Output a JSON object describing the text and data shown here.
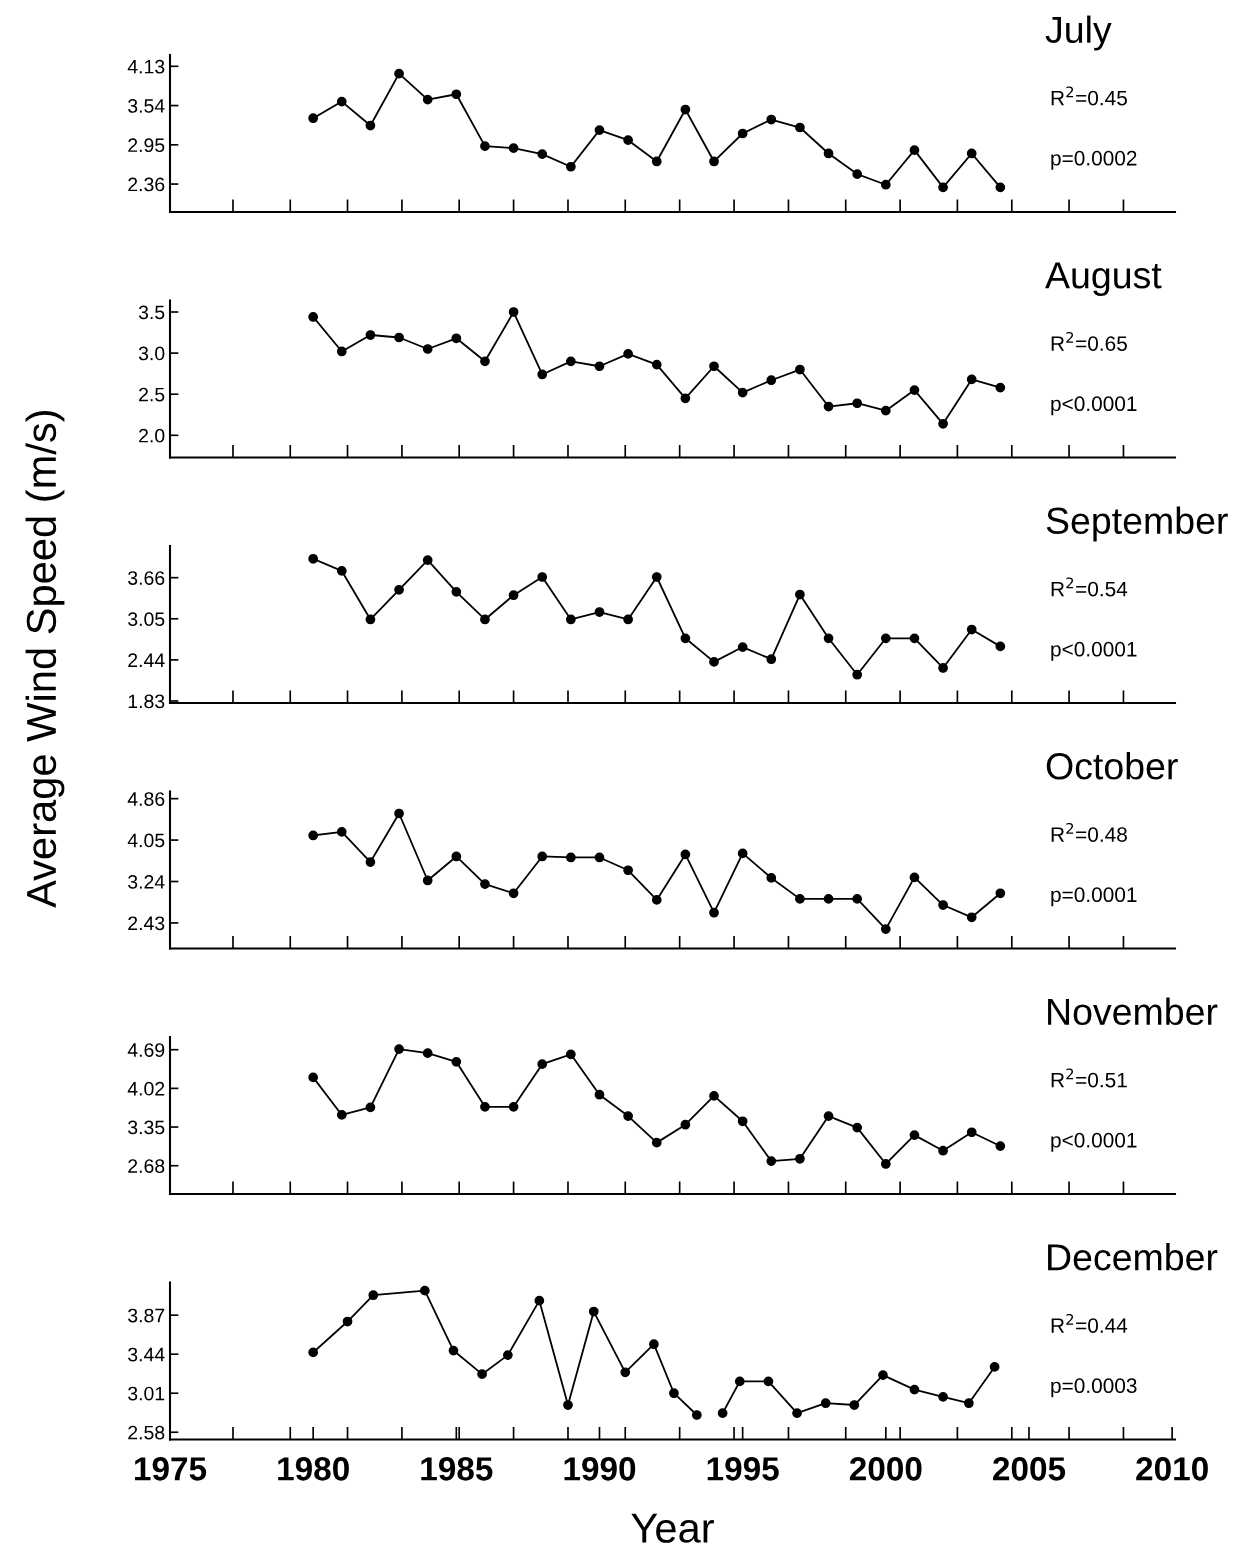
{
  "chart_data": [
    {
      "type": "line",
      "title": "July",
      "ylabel": "Average Wind Speed (m/s)",
      "annotations": [
        "R$^{2}$=0.45",
        "p=0.0002"
      ],
      "x": [
        1980,
        1981,
        1982,
        1983,
        1984,
        1985,
        1986,
        1987,
        1988,
        1989,
        1990,
        1991,
        1992,
        1993,
        1994,
        1995,
        1996,
        1997,
        1998,
        1999,
        2000,
        2001,
        2002,
        2003,
        2004
      ],
      "series": [
        {
          "color": "#000000",
          "values": [
            3.35,
            3.6,
            3.24,
            4.02,
            3.63,
            3.71,
            2.93,
            2.9,
            2.81,
            2.62,
            3.17,
            3.02,
            2.7,
            3.48,
            2.7,
            3.12,
            3.33,
            3.21,
            2.82,
            2.51,
            2.35,
            2.87,
            2.31,
            2.82,
            2.31
          ]
        }
      ],
      "xlim": [
        1975,
        2010.1
      ],
      "xticks": [
        {
          "value": 1977.2,
          "label": null
        },
        {
          "value": 1979.2,
          "label": null
        },
        {
          "value": 1981.2,
          "label": null
        },
        {
          "value": 1983.1,
          "label": null
        },
        {
          "value": 1985.1,
          "label": null
        },
        {
          "value": 1987.0,
          "label": null
        },
        {
          "value": 1988.9,
          "label": null
        },
        {
          "value": 1990.9,
          "label": null
        },
        {
          "value": 1992.8,
          "label": null
        },
        {
          "value": 1994.7,
          "label": null
        },
        {
          "value": 1996.6,
          "label": null
        },
        {
          "value": 1998.6,
          "label": null
        },
        {
          "value": 2000.5,
          "label": null
        },
        {
          "value": 2002.5,
          "label": null
        },
        {
          "value": 2004.4,
          "label": null
        },
        {
          "value": 2006.4,
          "label": null
        },
        {
          "value": 2008.3,
          "label": null
        }
      ],
      "ylim": [
        1.94,
        4.3
      ],
      "yticks": [
        2.36,
        2.95,
        3.54,
        4.13
      ],
      "tick_labels": "y",
      "marker": "circle",
      "line_style": "solid",
      "grid": false,
      "legend": false
    },
    {
      "type": "line",
      "title": "August",
      "annotations": [
        "R$^{2}$=0.65",
        "p<0.0001"
      ],
      "x": [
        1980,
        1981,
        1982,
        1983,
        1984,
        1985,
        1986,
        1987,
        1988,
        1989,
        1990,
        1991,
        1992,
        1993,
        1994,
        1995,
        1996,
        1997,
        1998,
        1999,
        2000,
        2001,
        2002,
        2003,
        2004
      ],
      "series": [
        {
          "color": "#000000",
          "values": [
            3.44,
            3.02,
            3.22,
            3.19,
            3.05,
            3.18,
            2.9,
            3.5,
            2.74,
            2.9,
            2.84,
            2.99,
            2.86,
            2.45,
            2.84,
            2.52,
            2.67,
            2.8,
            2.35,
            2.39,
            2.3,
            2.55,
            2.14,
            2.68,
            2.58
          ]
        }
      ],
      "xlim": [
        1975,
        2010.1
      ],
      "xticks": [
        {
          "value": 1977.2,
          "label": null
        },
        {
          "value": 1979.2,
          "label": null
        },
        {
          "value": 1981.2,
          "label": null
        },
        {
          "value": 1983.1,
          "label": null
        },
        {
          "value": 1985.1,
          "label": null
        },
        {
          "value": 1987.0,
          "label": null
        },
        {
          "value": 1988.9,
          "label": null
        },
        {
          "value": 1990.9,
          "label": null
        },
        {
          "value": 1992.8,
          "label": null
        },
        {
          "value": 1994.7,
          "label": null
        },
        {
          "value": 1996.6,
          "label": null
        },
        {
          "value": 1998.6,
          "label": null
        },
        {
          "value": 2000.5,
          "label": null
        },
        {
          "value": 2002.5,
          "label": null
        },
        {
          "value": 2004.4,
          "label": null
        },
        {
          "value": 2006.4,
          "label": null
        },
        {
          "value": 2008.3,
          "label": null
        }
      ],
      "ylim": [
        1.73,
        3.64
      ],
      "yticks": [
        {
          "value": 2.0,
          "label": "2.0"
        },
        {
          "value": 2.5,
          "label": "2.5"
        },
        {
          "value": 3.0,
          "label": "3.0"
        },
        {
          "value": 3.5,
          "label": "3.5"
        }
      ],
      "tick_labels": "y",
      "marker": "circle",
      "line_style": "solid",
      "grid": false,
      "legend": false
    },
    {
      "type": "line",
      "title": "September",
      "annotations": [
        "R$^{2}$=0.54",
        "p<0.0001"
      ],
      "x": [
        1980,
        1981,
        1982,
        1983,
        1984,
        1985,
        1986,
        1987,
        1988,
        1989,
        1990,
        1991,
        1992,
        1993,
        1994,
        1995,
        1996,
        1997,
        1998,
        1999,
        2000,
        2001,
        2002,
        2003,
        2004
      ],
      "series": [
        {
          "color": "#000000",
          "values": [
            3.94,
            3.76,
            3.04,
            3.48,
            3.92,
            3.45,
            3.04,
            3.4,
            3.67,
            3.04,
            3.15,
            3.04,
            3.67,
            2.76,
            2.41,
            2.63,
            2.45,
            3.41,
            2.76,
            2.22,
            2.76,
            2.76,
            2.32,
            2.89,
            2.64
          ]
        }
      ],
      "xlim": [
        1975,
        2010.1
      ],
      "xticks": [
        {
          "value": 1977.2,
          "label": null
        },
        {
          "value": 1979.2,
          "label": null
        },
        {
          "value": 1981.2,
          "label": null
        },
        {
          "value": 1983.1,
          "label": null
        },
        {
          "value": 1985.1,
          "label": null
        },
        {
          "value": 1987.0,
          "label": null
        },
        {
          "value": 1988.9,
          "label": null
        },
        {
          "value": 1990.9,
          "label": null
        },
        {
          "value": 1992.8,
          "label": null
        },
        {
          "value": 1994.7,
          "label": null
        },
        {
          "value": 1996.6,
          "label": null
        },
        {
          "value": 1998.6,
          "label": null
        },
        {
          "value": 2000.5,
          "label": null
        },
        {
          "value": 2002.5,
          "label": null
        },
        {
          "value": 2004.4,
          "label": null
        },
        {
          "value": 2006.4,
          "label": null
        },
        {
          "value": 2008.3,
          "label": null
        }
      ],
      "ylim": [
        1.8,
        4.13
      ],
      "yticks": [
        1.83,
        2.44,
        3.05,
        3.66
      ],
      "tick_labels": "y",
      "marker": "circle",
      "line_style": "solid",
      "grid": false,
      "legend": false
    },
    {
      "type": "line",
      "title": "October",
      "annotations": [
        "R$^{2}$=0.48",
        "p=0.0001"
      ],
      "x": [
        1980,
        1981,
        1982,
        1983,
        1984,
        1985,
        1986,
        1987,
        1988,
        1989,
        1990,
        1991,
        1992,
        1993,
        1994,
        1995,
        1996,
        1997,
        1998,
        1999,
        2000,
        2001,
        2002,
        2003,
        2004
      ],
      "series": [
        {
          "color": "#000000",
          "values": [
            4.14,
            4.21,
            3.62,
            4.57,
            3.26,
            3.73,
            3.19,
            3.01,
            3.73,
            3.71,
            3.71,
            3.46,
            2.88,
            3.77,
            2.63,
            3.79,
            3.31,
            2.9,
            2.9,
            2.9,
            2.31,
            3.32,
            2.78,
            2.54,
            3.01
          ]
        }
      ],
      "xlim": [
        1975,
        2010.1
      ],
      "xticks": [
        {
          "value": 1977.2,
          "label": null
        },
        {
          "value": 1979.2,
          "label": null
        },
        {
          "value": 1981.2,
          "label": null
        },
        {
          "value": 1983.1,
          "label": null
        },
        {
          "value": 1985.1,
          "label": null
        },
        {
          "value": 1987.0,
          "label": null
        },
        {
          "value": 1988.9,
          "label": null
        },
        {
          "value": 1990.9,
          "label": null
        },
        {
          "value": 1992.8,
          "label": null
        },
        {
          "value": 1994.7,
          "label": null
        },
        {
          "value": 1996.6,
          "label": null
        },
        {
          "value": 1998.6,
          "label": null
        },
        {
          "value": 2000.5,
          "label": null
        },
        {
          "value": 2002.5,
          "label": null
        },
        {
          "value": 2004.4,
          "label": null
        },
        {
          "value": 2006.4,
          "label": null
        },
        {
          "value": 2008.3,
          "label": null
        }
      ],
      "ylim": [
        1.93,
        5.0
      ],
      "yticks": [
        2.43,
        3.24,
        4.05,
        4.86
      ],
      "tick_labels": "y",
      "marker": "circle",
      "line_style": "solid",
      "grid": false,
      "legend": false
    },
    {
      "type": "line",
      "title": "November",
      "annotations": [
        "R$^{2}$=0.51",
        "p<0.0001"
      ],
      "x": [
        1980,
        1981,
        1982,
        1983,
        1984,
        1985,
        1986,
        1987,
        1988,
        1989,
        1990,
        1991,
        1992,
        1993,
        1994,
        1995,
        1996,
        1997,
        1998,
        1999,
        2000,
        2001,
        2002,
        2003,
        2004
      ],
      "series": [
        {
          "color": "#000000",
          "values": [
            4.21,
            3.56,
            3.69,
            4.7,
            4.63,
            4.48,
            3.7,
            3.7,
            4.44,
            4.61,
            3.91,
            3.54,
            3.08,
            3.39,
            3.89,
            3.45,
            2.76,
            2.8,
            3.54,
            3.34,
            2.71,
            3.21,
            2.94,
            3.26,
            3.02
          ]
        }
      ],
      "xlim": [
        1975,
        2010.1
      ],
      "xticks": [
        {
          "value": 1977.2,
          "label": null
        },
        {
          "value": 1979.2,
          "label": null
        },
        {
          "value": 1981.2,
          "label": null
        },
        {
          "value": 1983.1,
          "label": null
        },
        {
          "value": 1985.1,
          "label": null
        },
        {
          "value": 1987.0,
          "label": null
        },
        {
          "value": 1988.9,
          "label": null
        },
        {
          "value": 1990.9,
          "label": null
        },
        {
          "value": 1992.8,
          "label": null
        },
        {
          "value": 1994.7,
          "label": null
        },
        {
          "value": 1996.6,
          "label": null
        },
        {
          "value": 1998.6,
          "label": null
        },
        {
          "value": 2000.5,
          "label": null
        },
        {
          "value": 2002.5,
          "label": null
        },
        {
          "value": 2004.4,
          "label": null
        },
        {
          "value": 2006.4,
          "label": null
        },
        {
          "value": 2008.3,
          "label": null
        }
      ],
      "ylim": [
        2.19,
        4.91
      ],
      "yticks": [
        2.68,
        3.35,
        4.02,
        4.69
      ],
      "tick_labels": "y",
      "marker": "circle",
      "line_style": "solid",
      "grid": false,
      "legend": false
    },
    {
      "type": "line",
      "title": "December",
      "xlabel": "Year",
      "annotations": [
        "R$^{2}$=0.44",
        "p=0.0003"
      ],
      "x": [
        1980,
        1981.2,
        1982.1,
        1983.9,
        1984.9,
        1985.9,
        1986.8,
        1987.9,
        1988.9,
        1989.8,
        1990.9,
        1991.9,
        1992.6,
        1993.4,
        1993.9,
        1994.3,
        1994.9,
        1995.9,
        1996.9,
        1997.9,
        1998.9,
        1999.9,
        2001.0,
        2002.0,
        2002.9,
        2003.8
      ],
      "series": [
        {
          "color": "#000000",
          "values": [
            3.46,
            3.8,
            4.09,
            4.14,
            3.48,
            3.22,
            3.43,
            4.03,
            2.88,
            3.91,
            3.24,
            3.55,
            3.01,
            2.77,
            null,
            2.79,
            3.14,
            3.14,
            2.79,
            2.9,
            2.88,
            3.21,
            3.05,
            2.97,
            2.9,
            3.3
          ]
        }
      ],
      "xlim": [
        1975,
        2010.1
      ],
      "xticks": [
        1975,
        {
          "value": 1977.2,
          "label": null
        },
        {
          "value": 1979.2,
          "label": null
        },
        1980,
        {
          "value": 1981.2,
          "label": null
        },
        {
          "value": 1983.1,
          "label": null
        },
        1985,
        {
          "value": 1985.1,
          "label": null
        },
        {
          "value": 1987.0,
          "label": null
        },
        {
          "value": 1988.9,
          "label": null
        },
        1990,
        {
          "value": 1990.9,
          "label": null
        },
        {
          "value": 1992.8,
          "label": null
        },
        {
          "value": 1994.7,
          "label": null
        },
        1995,
        {
          "value": 1996.6,
          "label": null
        },
        {
          "value": 1998.6,
          "label": null
        },
        2000,
        {
          "value": 2000.5,
          "label": null
        },
        {
          "value": 2002.5,
          "label": null
        },
        {
          "value": 2004.4,
          "label": null
        },
        2005,
        {
          "value": 2006.4,
          "label": null
        },
        {
          "value": 2008.3,
          "label": null
        },
        2010
      ],
      "ylim": [
        2.5,
        4.23
      ],
      "yticks": [
        2.58,
        3.01,
        3.44,
        3.87
      ],
      "marker": "circle",
      "line_style": "solid",
      "grid": false,
      "legend": false
    }
  ]
}
